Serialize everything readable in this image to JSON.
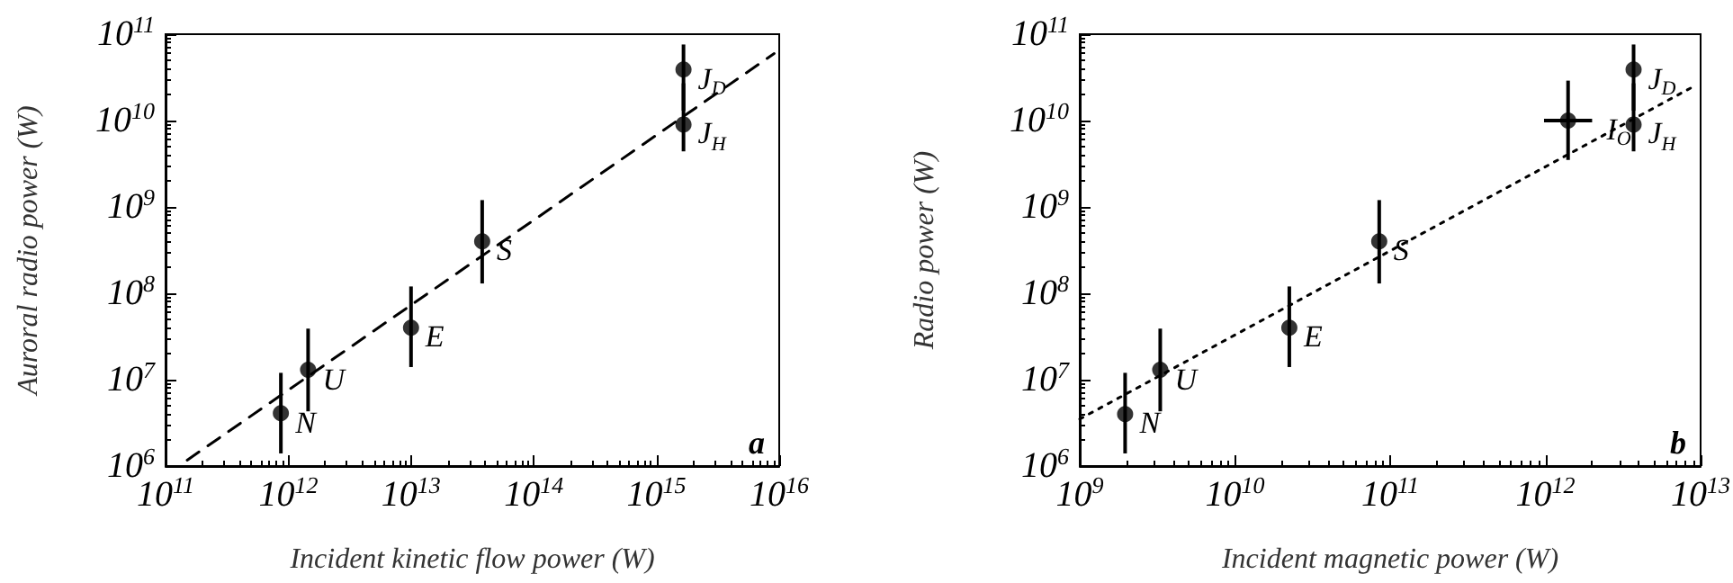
{
  "chart_data": [
    {
      "type": "scatter",
      "xlabel": "Incident kinetic flow power (W)",
      "ylabel": "Auroral radio power (W)",
      "log": "xy",
      "grid": false,
      "marker": "circle",
      "xlim": [
        100000000000.0,
        1e+16
      ],
      "ylim": [
        1000000.0,
        100000000000.0
      ],
      "xticks": [
        {
          "value": 100000000000.0,
          "label": "10$^{11}$"
        },
        {
          "value": 1000000000000.0,
          "label": "10$^{12}$"
        },
        {
          "value": 10000000000000.0,
          "label": "10$^{13}$"
        },
        {
          "value": 100000000000000.0,
          "label": "10$^{14}$"
        },
        {
          "value": 1000000000000000.0,
          "label": "10$^{15}$"
        },
        {
          "value": 1e+16,
          "label": "10$^{16}$"
        }
      ],
      "yticks": [
        {
          "value": 1000000.0,
          "label": "10$^{6}$"
        },
        {
          "value": 10000000.0,
          "label": "10$^{7}$"
        },
        {
          "value": 100000000.0,
          "label": "10$^{8}$"
        },
        {
          "value": 1000000000.0,
          "label": "10$^{9}$"
        },
        {
          "value": 10000000000.0,
          "label": "10$^{10}$"
        },
        {
          "value": 100000000000.0,
          "label": "10$^{11}$"
        }
      ],
      "series": [
        {
          "color": "#000000",
          "x": [
            870000000000.0,
            1450000000000.0,
            10000000000000.0,
            38000000000000.0,
            1660000000000000.0,
            1660000000000000.0
          ],
          "values": [
            4100000.0,
            13000000.0,
            40000000.0,
            400000000.0,
            39000000000.0,
            9000000000.0
          ],
          "errors": [
            [
              1400000.0,
              12000000.0
            ],
            [
              4300000.0,
              39000000.0
            ],
            [
              14000000.0,
              120000000.0
            ],
            [
              130000000.0,
              1200000000.0
            ],
            [
              13000000000.0,
              76000000000.0
            ],
            [
              4400000000.0,
              27000000000.0
            ]
          ]
        },
        {
          "type": "line",
          "color": "#000000",
          "marker": "none",
          "line_style": "dashed",
          "x": [
            150000000000.0,
            9100000000000000.0
          ],
          "values": [
            1170000.0,
            59700000000.0
          ]
        }
      ],
      "annotations": [
        {
          "text": "N",
          "x": 870000000000.0,
          "y": 4100000.0
        },
        {
          "text": "U",
          "x": 1450000000000.0,
          "y": 13000000.0
        },
        {
          "text": "E",
          "x": 10000000000000.0,
          "y": 40000000.0
        },
        {
          "text": "S",
          "x": 38000000000000.0,
          "y": 400000000.0
        },
        {
          "text": "J$_{D}$",
          "x": 1660000000000000.0,
          "y": 39000000000.0
        },
        {
          "text": "J$_{H}$",
          "x": 1660000000000000.0,
          "y": 9000000000.0
        },
        "a"
      ]
    },
    {
      "type": "scatter",
      "xlabel": "Incident magnetic power (W)",
      "ylabel": "Radio power (W)",
      "log": "xy",
      "grid": false,
      "marker": "circle",
      "xlim": [
        1000000000.0,
        10000000000000.0
      ],
      "ylim": [
        1000000.0,
        100000000000.0
      ],
      "xticks": [
        {
          "value": 1000000000.0,
          "label": "10$^{9}$"
        },
        {
          "value": 10000000000.0,
          "label": "10$^{10}$"
        },
        {
          "value": 100000000000.0,
          "label": "10$^{11}$"
        },
        {
          "value": 1000000000000.0,
          "label": "10$^{12}$"
        },
        {
          "value": 10000000000000.0,
          "label": "10$^{13}$"
        }
      ],
      "yticks": [
        {
          "value": 1000000.0,
          "label": "10$^{6}$"
        },
        {
          "value": 10000000.0,
          "label": "10$^{7}$"
        },
        {
          "value": 100000000.0,
          "label": "10$^{8}$"
        },
        {
          "value": 1000000000.0,
          "label": "10$^{9}$"
        },
        {
          "value": 10000000000.0,
          "label": "10$^{10}$"
        },
        {
          "value": 100000000000.0,
          "label": "10$^{11}$"
        }
      ],
      "series": [
        {
          "color": "#000000",
          "x": [
            1960000000.0,
            3300000000.0,
            22400000000.0,
            85000000000.0,
            1400000000000.0,
            3700000000000.0,
            3700000000000.0
          ],
          "values": [
            4000000.0,
            13000000.0,
            40000000.0,
            400000000.0,
            10000000000.0,
            39000000000.0,
            9000000000.0
          ],
          "errors": [
            [
              1400000.0,
              12000000.0
            ],
            [
              4300000.0,
              39000000.0
            ],
            [
              14000000.0,
              120000000.0
            ],
            [
              130000000.0,
              1200000000.0
            ],
            [
              3500000000.0,
              29000000000.0
            ],
            [
              13000000000.0,
              76000000000.0
            ],
            [
              4400000000.0,
              27000000000.0
            ]
          ],
          "xerrors": [
            null,
            null,
            null,
            null,
            [
              980000000000.0,
              2000000000000.0
            ],
            null,
            null
          ]
        },
        {
          "type": "line",
          "color": "#000000",
          "marker": "none",
          "line_style": "dotted",
          "x": [
            1000000000.0,
            8700000000000.0
          ],
          "values": [
            3500000.0,
            24000000000.0
          ]
        }
      ],
      "annotations": [
        {
          "text": "N",
          "x": 1960000000.0,
          "y": 4000000.0
        },
        {
          "text": "U",
          "x": 3300000000.0,
          "y": 13000000.0
        },
        {
          "text": "E",
          "x": 22400000000.0,
          "y": 40000000.0
        },
        {
          "text": "S",
          "x": 85000000000.0,
          "y": 400000000.0
        },
        {
          "text": "I$_{O}$",
          "x": 1400000000000.0,
          "y": 10000000000.0
        },
        {
          "text": "J$_{D}$",
          "x": 3700000000000.0,
          "y": 39000000000.0
        },
        {
          "text": "J$_{H}$",
          "x": 3700000000000.0,
          "y": 9000000000.0
        },
        "b"
      ]
    }
  ]
}
